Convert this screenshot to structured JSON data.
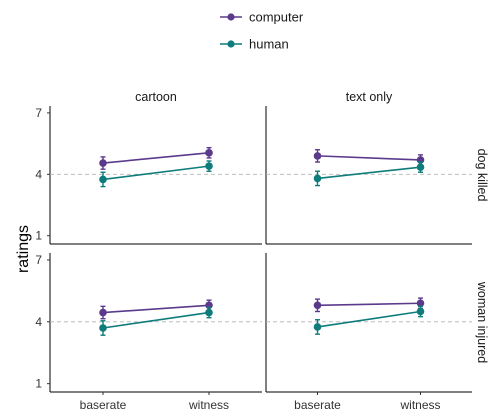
{
  "chart_data": {
    "type": "line",
    "ylabel": "ratings",
    "xlabel": "",
    "categories": [
      "baserate",
      "witness"
    ],
    "yticks": [
      1,
      4,
      7
    ],
    "ylim": [
      1,
      7
    ],
    "reference_line": 4,
    "grid": false,
    "legend": {
      "placement": "top-center",
      "entries": [
        {
          "name": "computer",
          "color": "#5B3A8C"
        },
        {
          "name": "human",
          "color": "#0E7C7B"
        }
      ]
    },
    "columns": [
      "cartoon",
      "text only"
    ],
    "rows": [
      "dog killed",
      "woman injured"
    ],
    "panels": [
      {
        "col": "cartoon",
        "row": "dog killed",
        "series": [
          {
            "name": "computer",
            "values": [
              4.55,
              5.05
            ],
            "err": [
              0.3,
              0.25
            ]
          },
          {
            "name": "human",
            "values": [
              3.75,
              4.4
            ],
            "err": [
              0.35,
              0.25
            ]
          }
        ]
      },
      {
        "col": "text only",
        "row": "dog killed",
        "series": [
          {
            "name": "computer",
            "values": [
              4.9,
              4.7
            ],
            "err": [
              0.3,
              0.25
            ]
          },
          {
            "name": "human",
            "values": [
              3.8,
              4.35
            ],
            "err": [
              0.35,
              0.25
            ]
          }
        ]
      },
      {
        "col": "cartoon",
        "row": "woman injured",
        "series": [
          {
            "name": "computer",
            "values": [
              4.45,
              4.8
            ],
            "err": [
              0.3,
              0.25
            ]
          },
          {
            "name": "human",
            "values": [
              3.7,
              4.45
            ],
            "err": [
              0.35,
              0.25
            ]
          }
        ]
      },
      {
        "col": "text only",
        "row": "woman injured",
        "series": [
          {
            "name": "computer",
            "values": [
              4.8,
              4.9
            ],
            "err": [
              0.3,
              0.25
            ]
          },
          {
            "name": "human",
            "values": [
              3.75,
              4.5
            ],
            "err": [
              0.35,
              0.25
            ]
          }
        ]
      }
    ]
  }
}
